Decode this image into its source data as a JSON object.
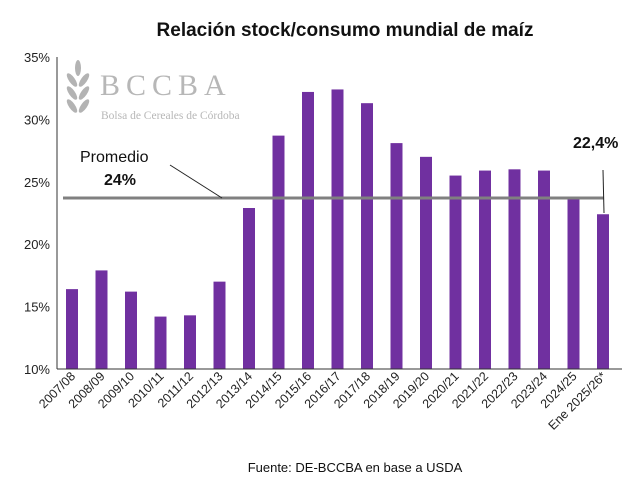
{
  "chart_data": {
    "type": "bar",
    "title": "Relación stock/consumo mundial de maíz",
    "source": "Fuente: DE-BCCBA en base a USDA",
    "logo": {
      "name": "BCCBA",
      "subtitle": "Bolsa de Cereales de Córdoba"
    },
    "categories": [
      "2007/08",
      "2008/09",
      "2009/10",
      "2010/11",
      "2011/12",
      "2012/13",
      "2013/14",
      "2014/15",
      "2015/16",
      "2016/17",
      "2017/18",
      "2018/19",
      "2019/20",
      "2020/21",
      "2021/22",
      "2022/23",
      "2023/24",
      "2024/25",
      "Ene 2025/26*"
    ],
    "values": [
      16.4,
      17.9,
      16.2,
      14.2,
      14.3,
      17.0,
      22.9,
      28.7,
      32.2,
      32.4,
      31.3,
      28.1,
      27.0,
      25.5,
      25.9,
      26.0,
      25.9,
      23.6,
      22.4
    ],
    "unit": "%",
    "ylim": [
      10,
      35
    ],
    "yticks": [
      "10%",
      "15%",
      "20%",
      "25%",
      "30%",
      "35%"
    ],
    "average": {
      "value": 23.7,
      "label": "Promedio",
      "value_label": "24%"
    },
    "last_label": "22,4%",
    "colors": {
      "bar": "#7030A0",
      "average": "#808080"
    }
  }
}
